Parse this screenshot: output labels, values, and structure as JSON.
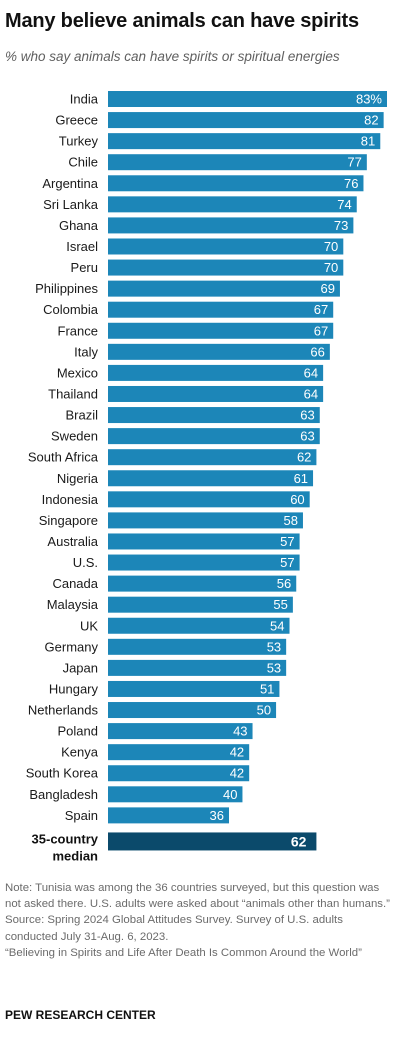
{
  "title": "Many believe animals can have spirits",
  "subtitle": "% who say animals can have spirits or spiritual energies",
  "chart_data": {
    "type": "bar",
    "orientation": "horizontal",
    "title": "Many believe animals can have spirits",
    "subtitle": "% who say animals can have spirits or spiritual energies",
    "xlim": [
      0,
      100
    ],
    "grid": false,
    "categories": [
      "India",
      "Greece",
      "Turkey",
      "Chile",
      "Argentina",
      "Sri Lanka",
      "Ghana",
      "Israel",
      "Peru",
      "Philippines",
      "Colombia",
      "France",
      "Italy",
      "Mexico",
      "Thailand",
      "Brazil",
      "Sweden",
      "South Africa",
      "Nigeria",
      "Indonesia",
      "Singapore",
      "Australia",
      "U.S.",
      "Canada",
      "Malaysia",
      "UK",
      "Germany",
      "Japan",
      "Hungary",
      "Netherlands",
      "Poland",
      "Kenya",
      "South Korea",
      "Bangladesh",
      "Spain"
    ],
    "values": [
      83,
      82,
      81,
      77,
      76,
      74,
      73,
      70,
      70,
      69,
      67,
      67,
      66,
      64,
      64,
      63,
      63,
      62,
      61,
      60,
      58,
      57,
      57,
      56,
      55,
      54,
      53,
      53,
      51,
      50,
      43,
      42,
      42,
      40,
      36
    ],
    "value_labels": [
      "83%",
      "82",
      "81",
      "77",
      "76",
      "74",
      "73",
      "70",
      "70",
      "69",
      "67",
      "67",
      "66",
      "64",
      "64",
      "63",
      "63",
      "62",
      "61",
      "60",
      "58",
      "57",
      "57",
      "56",
      "55",
      "54",
      "53",
      "53",
      "51",
      "50",
      "43",
      "42",
      "42",
      "40",
      "36"
    ],
    "median": {
      "label_line1": "35-country",
      "label_line2": "median",
      "value": 62,
      "value_label": "62"
    },
    "colors": {
      "bar": "#1c86b8",
      "median_bar": "#0b4a6b",
      "label_text": "#ffffff"
    }
  },
  "notes": [
    "Note: Tunisia was among the 36 countries surveyed, but this question was not asked there. U.S. adults were asked about “animals other than humans.”",
    "Source: Spring 2024 Global Attitudes Survey. Survey of U.S. adults conducted July 31-Aug. 6, 2023.",
    "“Believing in Spirits and Life After Death Is Common Around the World”"
  ],
  "footer": "PEW RESEARCH CENTER"
}
